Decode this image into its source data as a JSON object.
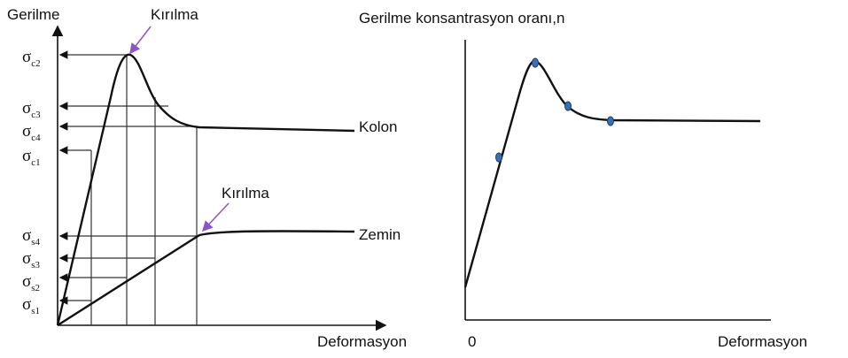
{
  "left": {
    "y_label": "Gerilme",
    "x_label": "Deformasyon",
    "break_top": "Kırılma",
    "break_bottom": "Kırılma",
    "column": "Kolon",
    "soil": "Zemin",
    "stress_labels": [
      {
        "symbol": "σ",
        "sub": "c2"
      },
      {
        "symbol": "σ",
        "sub": "c3"
      },
      {
        "symbol": "σ",
        "sub": "c4"
      },
      {
        "symbol": "σ",
        "sub": "c1"
      },
      {
        "symbol": "σ",
        "sub": "s4"
      },
      {
        "symbol": "σ",
        "sub": "s3"
      },
      {
        "symbol": "σ",
        "sub": "s2"
      },
      {
        "symbol": "σ",
        "sub": "s1"
      }
    ]
  },
  "right": {
    "y_label": "Gerilme konsantrasyon oranı,n",
    "origin": "0",
    "x_label": "Deformasyon"
  }
}
